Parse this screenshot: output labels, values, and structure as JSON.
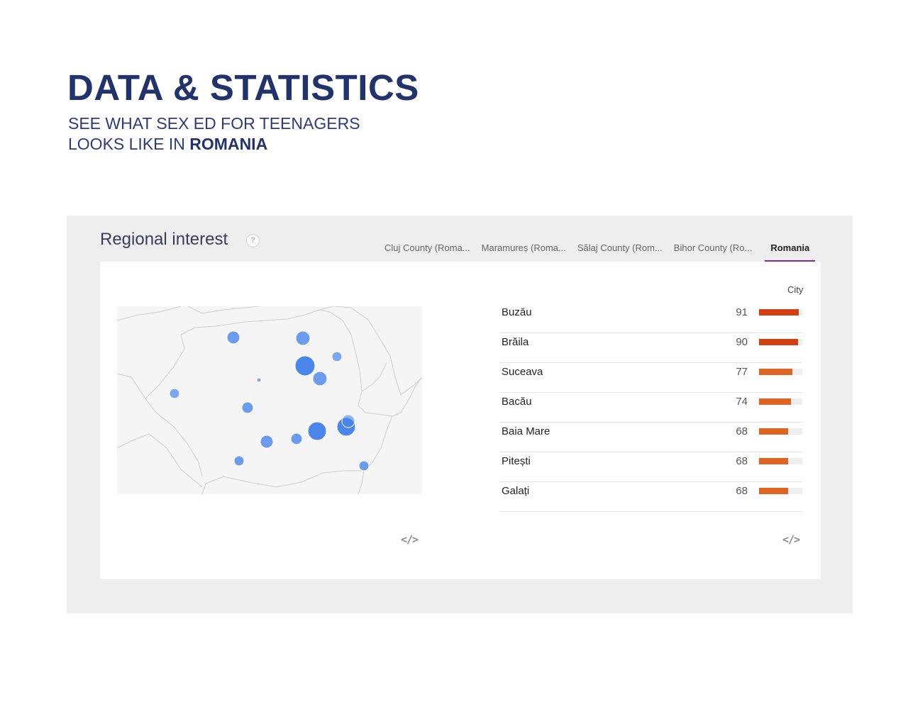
{
  "hero": {
    "title": "DATA & STATISTICS",
    "subtitle_line1": "SEE WHAT SEX ED FOR TEENAGERS",
    "subtitle_line2_prefix": "LOOKS LIKE IN ",
    "subtitle_line2_bold": "ROMANIA"
  },
  "panel": {
    "title": "Regional interest",
    "help_glyph": "?",
    "tabs": [
      {
        "label": "Cluj County (Roma...",
        "active": false
      },
      {
        "label": "Maramureș (Roma...",
        "active": false
      },
      {
        "label": "Sălaj County (Rom...",
        "active": false
      },
      {
        "label": "Bihor County (Ro...",
        "active": false
      },
      {
        "label": "Romania",
        "active": true
      }
    ],
    "list_header": "City",
    "embed_glyph": "</>",
    "rows": [
      {
        "name": "Buzău",
        "value": 91
      },
      {
        "name": "Brăila",
        "value": 90
      },
      {
        "name": "Suceava",
        "value": 77
      },
      {
        "name": "Bacău",
        "value": 74
      },
      {
        "name": "Baia Mare",
        "value": 68
      },
      {
        "name": "Pitești",
        "value": 68
      },
      {
        "name": "Galați",
        "value": 68
      }
    ]
  },
  "colors": {
    "accent_tab": "#7b2a9e",
    "bar_high": "#d13f12",
    "bar_mid": "#e06322",
    "bubble": "#4a86ec"
  }
}
